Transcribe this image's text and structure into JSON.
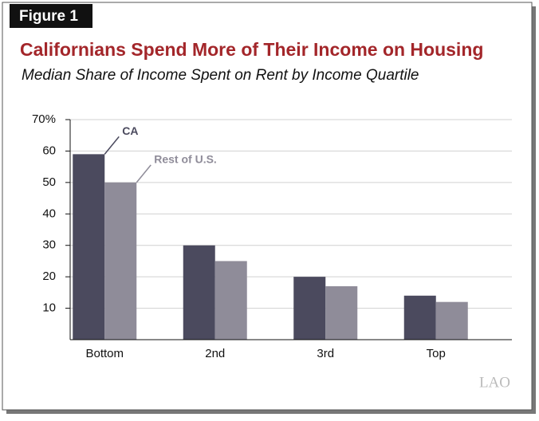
{
  "figure_label": "Figure 1",
  "logo": "LAO",
  "chart_data": {
    "type": "bar",
    "title": "Californians Spend More of Their Income on Housing",
    "subtitle": "Median Share of Income Spent on Rent by Income Quartile",
    "categories": [
      "Bottom",
      "2nd",
      "3rd",
      "Top"
    ],
    "series": [
      {
        "name": "CA",
        "color": "#4b4a5e",
        "values": [
          59,
          30,
          20,
          14
        ]
      },
      {
        "name": "Rest of U.S.",
        "color": "#8f8c99",
        "values": [
          50,
          25,
          17,
          12
        ]
      }
    ],
    "ylim": [
      0,
      70
    ],
    "yticks": [
      10,
      20,
      30,
      40,
      50,
      60,
      {
        "value": 70,
        "label": "70%"
      }
    ],
    "grid": true
  }
}
